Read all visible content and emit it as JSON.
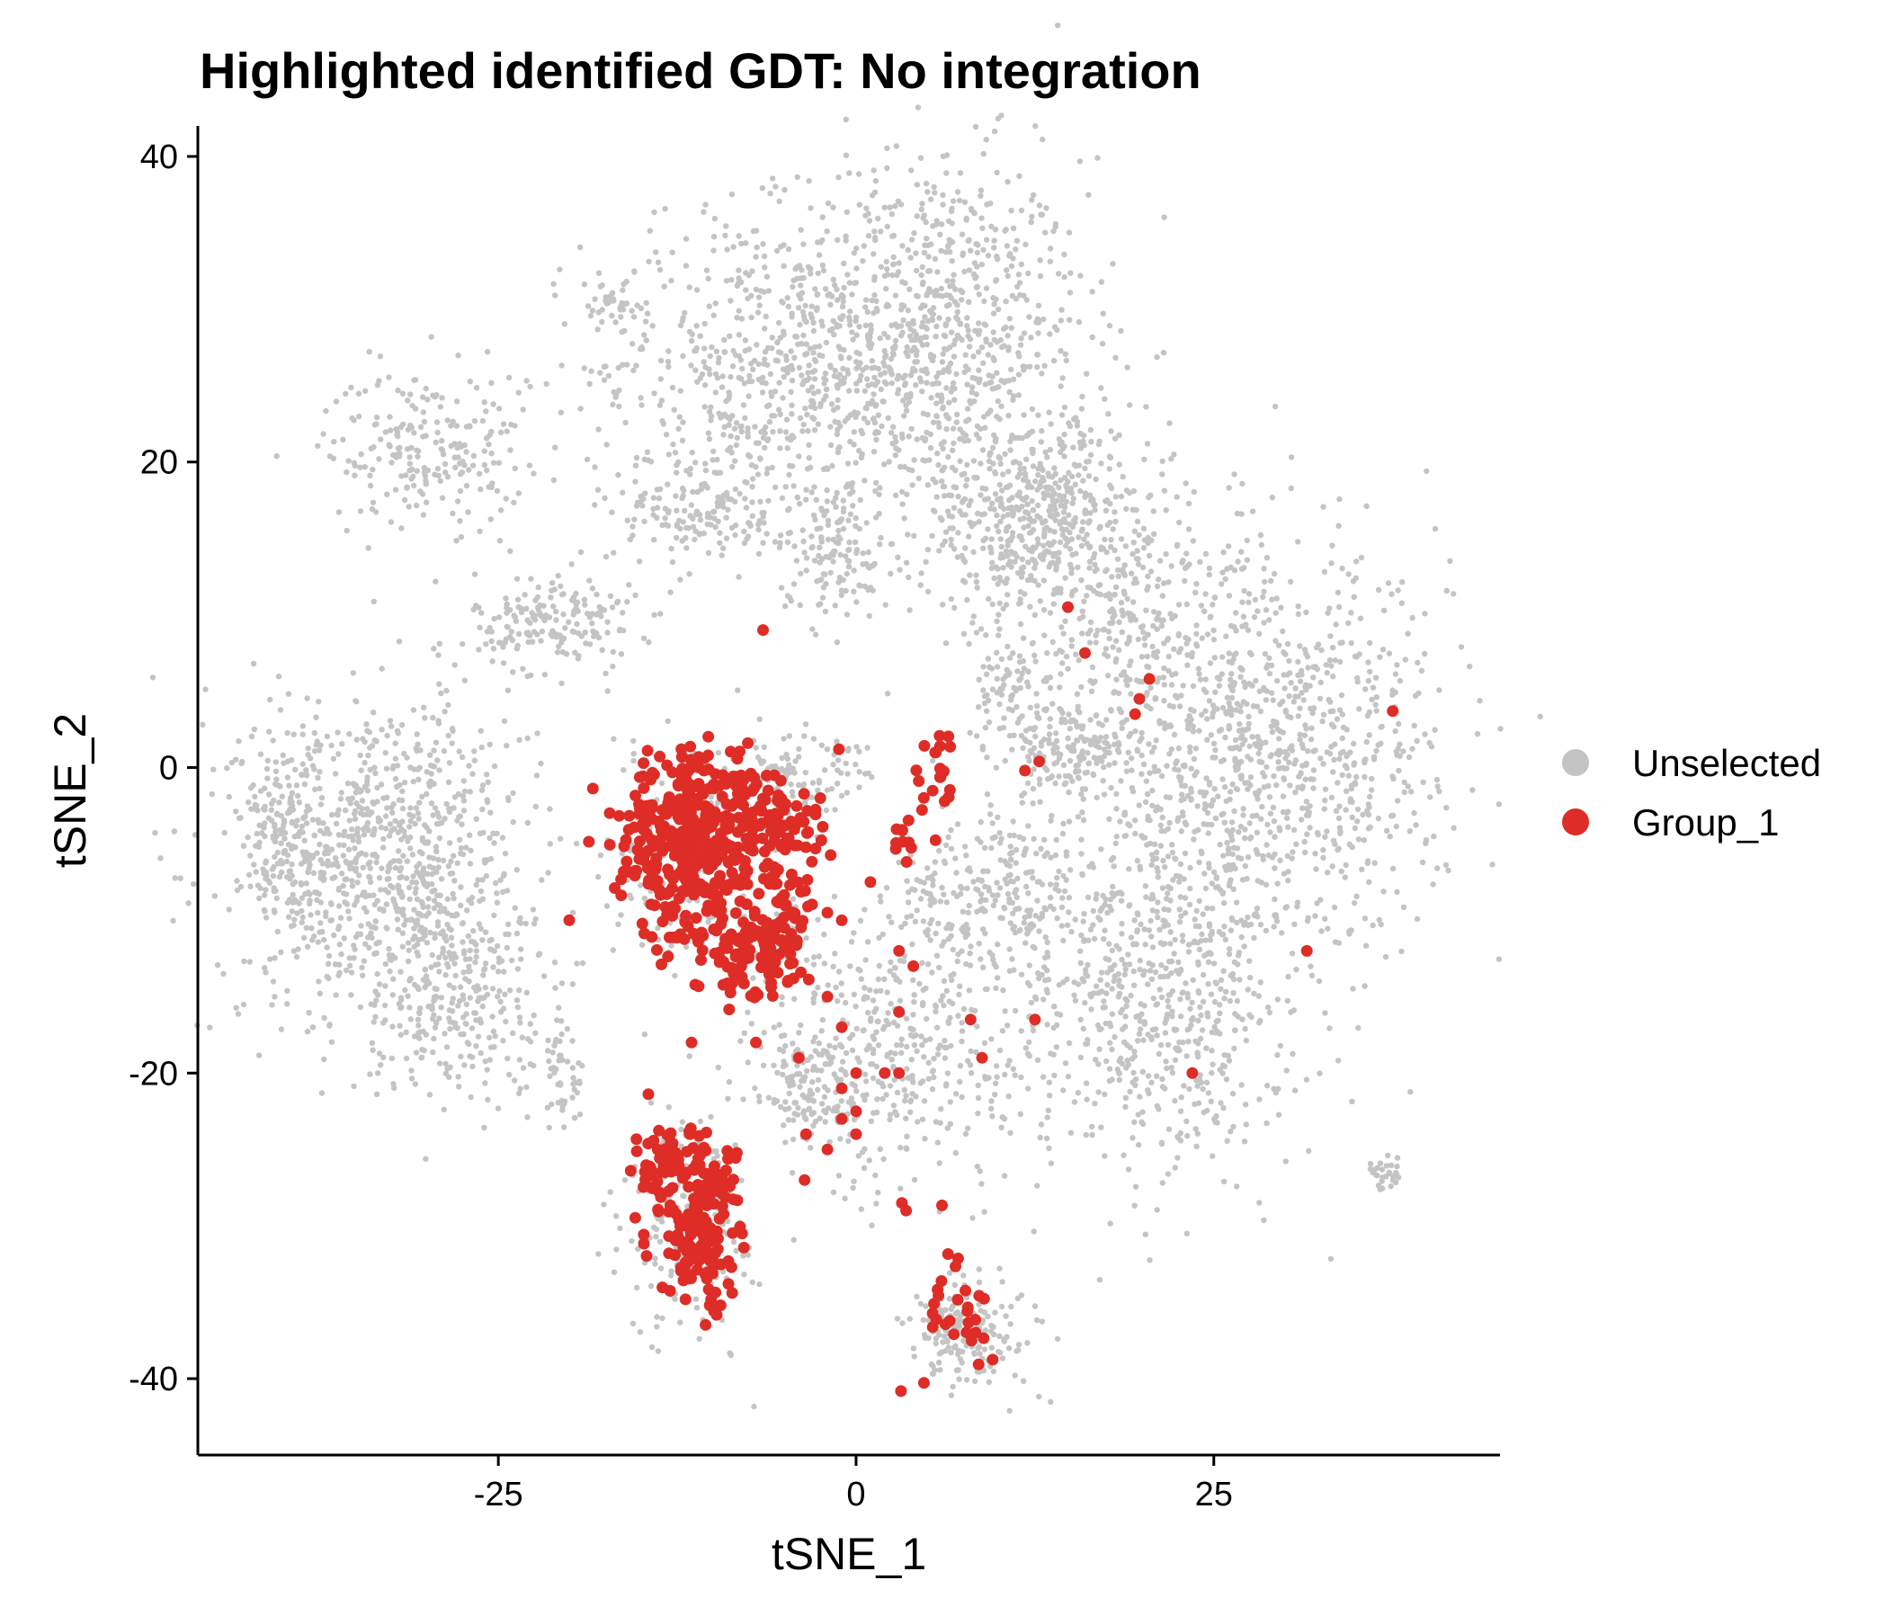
{
  "chart_data": {
    "type": "scatter",
    "title": "Highlighted identified GDT:  No integration",
    "xlabel": "tSNE_1",
    "ylabel": "tSNE_2",
    "xlim": [
      -46,
      45
    ],
    "ylim": [
      -45,
      42
    ],
    "x_ticks": [
      -25,
      0,
      25
    ],
    "y_ticks": [
      40,
      20,
      0,
      -20,
      -40
    ],
    "grid": false,
    "legend": "right",
    "series": [
      {
        "name": "Unselected",
        "color": "#c4c4c4",
        "clusters": [
          {
            "cx": 5,
            "cy": 28,
            "sx": 5.5,
            "sy": 6,
            "n": 900
          },
          {
            "cx": -7,
            "cy": 26,
            "sx": 6,
            "sy": 5,
            "n": 500
          },
          {
            "cx": -11,
            "cy": 17,
            "sx": 3,
            "sy": 2,
            "n": 150
          },
          {
            "cx": -17,
            "cy": 30,
            "sx": 1,
            "sy": 1,
            "n": 30
          },
          {
            "cx": -30,
            "cy": 21,
            "sx": 3.5,
            "sy": 2.5,
            "n": 220
          },
          {
            "cx": -21,
            "cy": 9.5,
            "sx": 2.8,
            "sy": 1.7,
            "n": 180
          },
          {
            "cx": -1.5,
            "cy": 14,
            "sx": 2,
            "sy": 2,
            "n": 120
          },
          {
            "cx": 13,
            "cy": 16,
            "sx": 4.5,
            "sy": 3.5,
            "n": 600
          },
          {
            "cx": 28,
            "cy": 1,
            "sx": 6.5,
            "sy": 6.5,
            "n": 1100
          },
          {
            "cx": 19,
            "cy": 9,
            "sx": 2,
            "sy": 3,
            "n": 120
          },
          {
            "cx": 11,
            "cy": 5,
            "sx": 1.7,
            "sy": 1.5,
            "n": 90
          },
          {
            "cx": 15,
            "cy": 1,
            "sx": 2,
            "sy": 1.5,
            "n": 140
          },
          {
            "cx": -33,
            "cy": -6,
            "sx": 5,
            "sy": 5.5,
            "n": 900
          },
          {
            "cx": -28,
            "cy": -15,
            "sx": 3,
            "sy": 3,
            "n": 250
          },
          {
            "cx": -40,
            "cy": -4,
            "sx": 1.8,
            "sy": 3,
            "n": 150
          },
          {
            "cx": -5,
            "cy": -1,
            "sx": 1.5,
            "sy": 2,
            "n": 80
          },
          {
            "cx": -1,
            "cy": 0,
            "sx": 1,
            "sy": 1,
            "n": 30
          },
          {
            "cx": 3,
            "cy": -18,
            "sx": 5,
            "sy": 5,
            "n": 450
          },
          {
            "cx": -3,
            "cy": -21,
            "sx": 2,
            "sy": 2,
            "n": 120
          },
          {
            "cx": 6,
            "cy": -9,
            "sx": 1.5,
            "sy": 2.5,
            "n": 70
          },
          {
            "cx": 11,
            "cy": -8,
            "sx": 2.2,
            "sy": 3,
            "n": 160
          },
          {
            "cx": 21,
            "cy": -15,
            "sx": 4.5,
            "sy": 6,
            "n": 650
          },
          {
            "cx": -11.5,
            "cy": -6,
            "sx": 3.5,
            "sy": 3.5,
            "n": 130
          },
          {
            "cx": -11.5,
            "cy": -30,
            "sx": 2.3,
            "sy": 3.8,
            "n": 170
          },
          {
            "cx": 8,
            "cy": -37,
            "sx": 2.3,
            "sy": 1.8,
            "n": 180
          },
          {
            "cx": -20.5,
            "cy": -20,
            "sx": 0.8,
            "sy": 1.8,
            "n": 50
          },
          {
            "cx": 37,
            "cy": -26.5,
            "sx": 0.6,
            "sy": 0.6,
            "n": 30
          }
        ]
      },
      {
        "name": "Group_1",
        "color": "#de2d26",
        "clusters": [
          {
            "cx": -11,
            "cy": -5,
            "sx": 2.8,
            "sy": 3.2,
            "n": 420
          },
          {
            "cx": -8,
            "cy": -12,
            "sx": 1.6,
            "sy": 1.6,
            "n": 70
          },
          {
            "cx": -5,
            "cy": -10,
            "sx": 1,
            "sy": 2.5,
            "n": 60
          },
          {
            "cx": -5,
            "cy": -4,
            "sx": 1.5,
            "sy": 1.2,
            "n": 40
          },
          {
            "cx": -13,
            "cy": -26,
            "sx": 1.3,
            "sy": 1.2,
            "n": 70
          },
          {
            "cx": -11,
            "cy": -31.5,
            "sx": 1.4,
            "sy": 2,
            "n": 130
          },
          {
            "cx": -9.5,
            "cy": -27,
            "sx": 1,
            "sy": 1,
            "n": 30
          },
          {
            "cx": 6,
            "cy": -0.5,
            "sx": 0.8,
            "sy": 1.5,
            "n": 20
          },
          {
            "cx": 3.5,
            "cy": -5,
            "sx": 0.5,
            "sy": 0.7,
            "n": 10
          },
          {
            "cx": 7.5,
            "cy": -36,
            "sx": 1.5,
            "sy": 2.5,
            "n": 30
          }
        ],
        "points": [
          [
            -6.5,
            9
          ],
          [
            14.8,
            10.5
          ],
          [
            16,
            7.5
          ],
          [
            20.5,
            5.8
          ],
          [
            19.8,
            4.5
          ],
          [
            19.5,
            3.5
          ],
          [
            37.5,
            3.7
          ],
          [
            12.8,
            0.4
          ],
          [
            11.8,
            -0.2
          ],
          [
            31.5,
            -12
          ],
          [
            23.5,
            -20
          ],
          [
            12.5,
            -16.5
          ],
          [
            8,
            -16.5
          ],
          [
            8.8,
            -19
          ],
          [
            3,
            -16
          ],
          [
            3.5,
            -29
          ],
          [
            3.2,
            -28.5
          ],
          [
            -7,
            -18
          ],
          [
            -11.5,
            -18
          ],
          [
            -4,
            -19
          ],
          [
            -3.5,
            -24
          ],
          [
            -2,
            -25
          ],
          [
            0,
            -24
          ],
          [
            -1,
            -21
          ],
          [
            -1,
            -23
          ],
          [
            0,
            -22.5
          ],
          [
            2,
            -20
          ],
          [
            3,
            -20
          ],
          [
            1,
            -7.5
          ],
          [
            -2,
            -9.5
          ],
          [
            -1,
            -10
          ],
          [
            3,
            -12
          ],
          [
            -2,
            -15
          ],
          [
            -1,
            -17
          ],
          [
            4,
            -13
          ],
          [
            -1.2,
            1.2
          ],
          [
            -2.5,
            -2
          ],
          [
            -4.5,
            -7
          ],
          [
            0,
            -20
          ],
          [
            -3.6,
            -27
          ]
        ]
      }
    ]
  }
}
